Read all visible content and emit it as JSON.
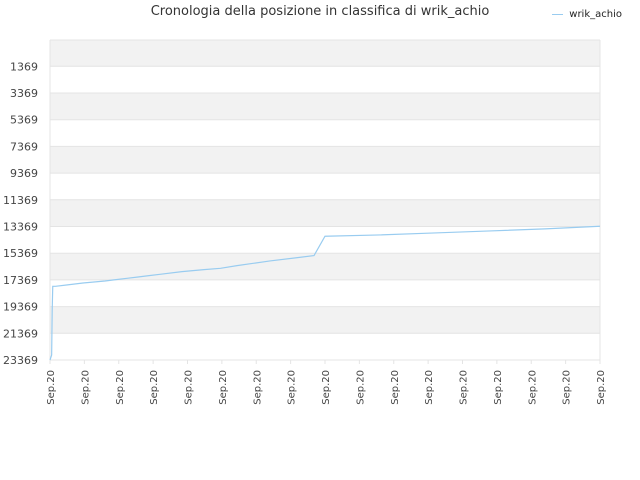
{
  "colors": {
    "line": "#99ccf0",
    "band": "#f2f2f2",
    "grid": "#e4e4e4",
    "axis_text": "#444444"
  },
  "chart_data": {
    "type": "line",
    "title": "Cronologia della posizione in classifica di wrik_achio",
    "xlabel": "",
    "ylabel": "",
    "y_axis_inverted": true,
    "ylim": [
      23369,
      -600
    ],
    "y_ticks": [
      1369,
      3369,
      5369,
      7369,
      9369,
      11369,
      13369,
      15369,
      17369,
      19369,
      21369,
      23369
    ],
    "y_tick_labels": [
      "1369",
      "3369",
      "5369",
      "7369",
      "9369",
      "11369",
      "13369",
      "15369",
      "17369",
      "19369",
      "21369",
      "23369"
    ],
    "x_tick_labels": [
      "Sep.20",
      "Sep.20",
      "Sep.20",
      "Sep.20",
      "Sep.20",
      "Sep.20",
      "Sep.20",
      "Sep.20",
      "Sep.20",
      "Sep.20",
      "Sep.20",
      "Sep.20",
      "Sep.20",
      "Sep.20",
      "Sep.20",
      "Sep.20",
      "Sep.20"
    ],
    "legend": {
      "position": "top-right"
    },
    "grid": true,
    "series": [
      {
        "name": "wrik_achio",
        "x": [
          0,
          0.3,
          0.4,
          0.5,
          1,
          3,
          6,
          10,
          12,
          14,
          16,
          18,
          20,
          24,
          28,
          31,
          34,
          40,
          45,
          48,
          50,
          60,
          70,
          80,
          90,
          100
        ],
        "y": [
          23369,
          23000,
          19600,
          17850,
          17850,
          17750,
          17600,
          17450,
          17350,
          17250,
          17150,
          17050,
          16950,
          16750,
          16600,
          16500,
          16300,
          15950,
          15700,
          15550,
          14100,
          14000,
          13850,
          13700,
          13550,
          13350
        ]
      }
    ]
  }
}
